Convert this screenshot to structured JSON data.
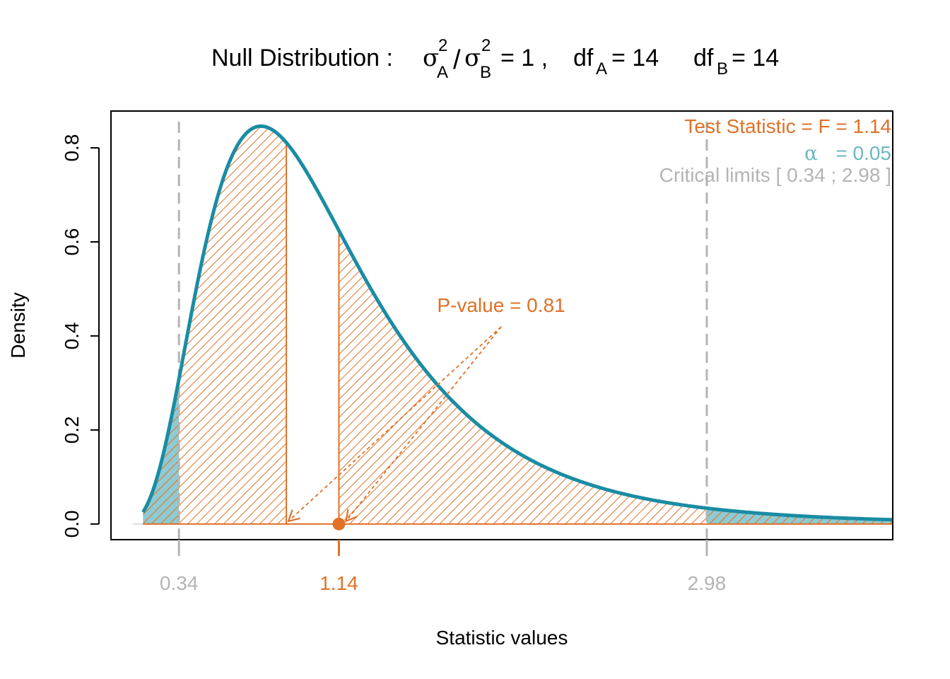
{
  "chart_data": {
    "type": "area",
    "title": {
      "main": "Null Distribution :",
      "sigma": "σ",
      "sup_a": "2",
      "sub_a": "A",
      "slash": "/",
      "sup_b": "2",
      "sub_b": "B",
      "eq_one": "= 1 ,",
      "df": "df",
      "df_a_sub": "A",
      "df_a_eq": "=  14",
      "df_b_sub": "B",
      "df_b_eq": "=  14"
    },
    "xlabel": "Statistic values",
    "ylabel": "Density",
    "xlim": [
      0.0,
      3.91
    ],
    "ylim": [
      -0.0333,
      0.8783
    ],
    "y_ticks": [
      "0.0",
      "0.2",
      "0.4",
      "0.6",
      "0.8"
    ],
    "y_tick_values": [
      0.0,
      0.2,
      0.4,
      0.6,
      0.8
    ],
    "x_tick_labels": [
      {
        "value": 0.34,
        "label": "0.34",
        "color": "#b4b4b4"
      },
      {
        "value": 1.14,
        "label": "1.14",
        "color": "#e07126"
      },
      {
        "value": 2.98,
        "label": "2.98",
        "color": "#b4b4b4"
      }
    ],
    "distribution": {
      "family": "F",
      "df1": 14,
      "df2": 14,
      "x_from": 0.16,
      "x_to": 3.91
    },
    "test_statistic": 1.14,
    "critical_limits": [
      0.34,
      2.98
    ],
    "symmetric_point": 0.877,
    "p_value_label": "P-value = 0.81",
    "annotations": {
      "test_stat": "Test Statistic = F =  1.14",
      "alpha_symbol": "α",
      "alpha_eq": "=  0.05",
      "critical": "Critical limits  [ 0.34 ; 2.98 ]"
    },
    "colors": {
      "curve": "#1a8ca4",
      "pvalue": "#e07126",
      "alpha": "#6bb8c3",
      "critical": "#b4b4b4",
      "axis": "#000000"
    },
    "grid": false,
    "legend": "none"
  }
}
